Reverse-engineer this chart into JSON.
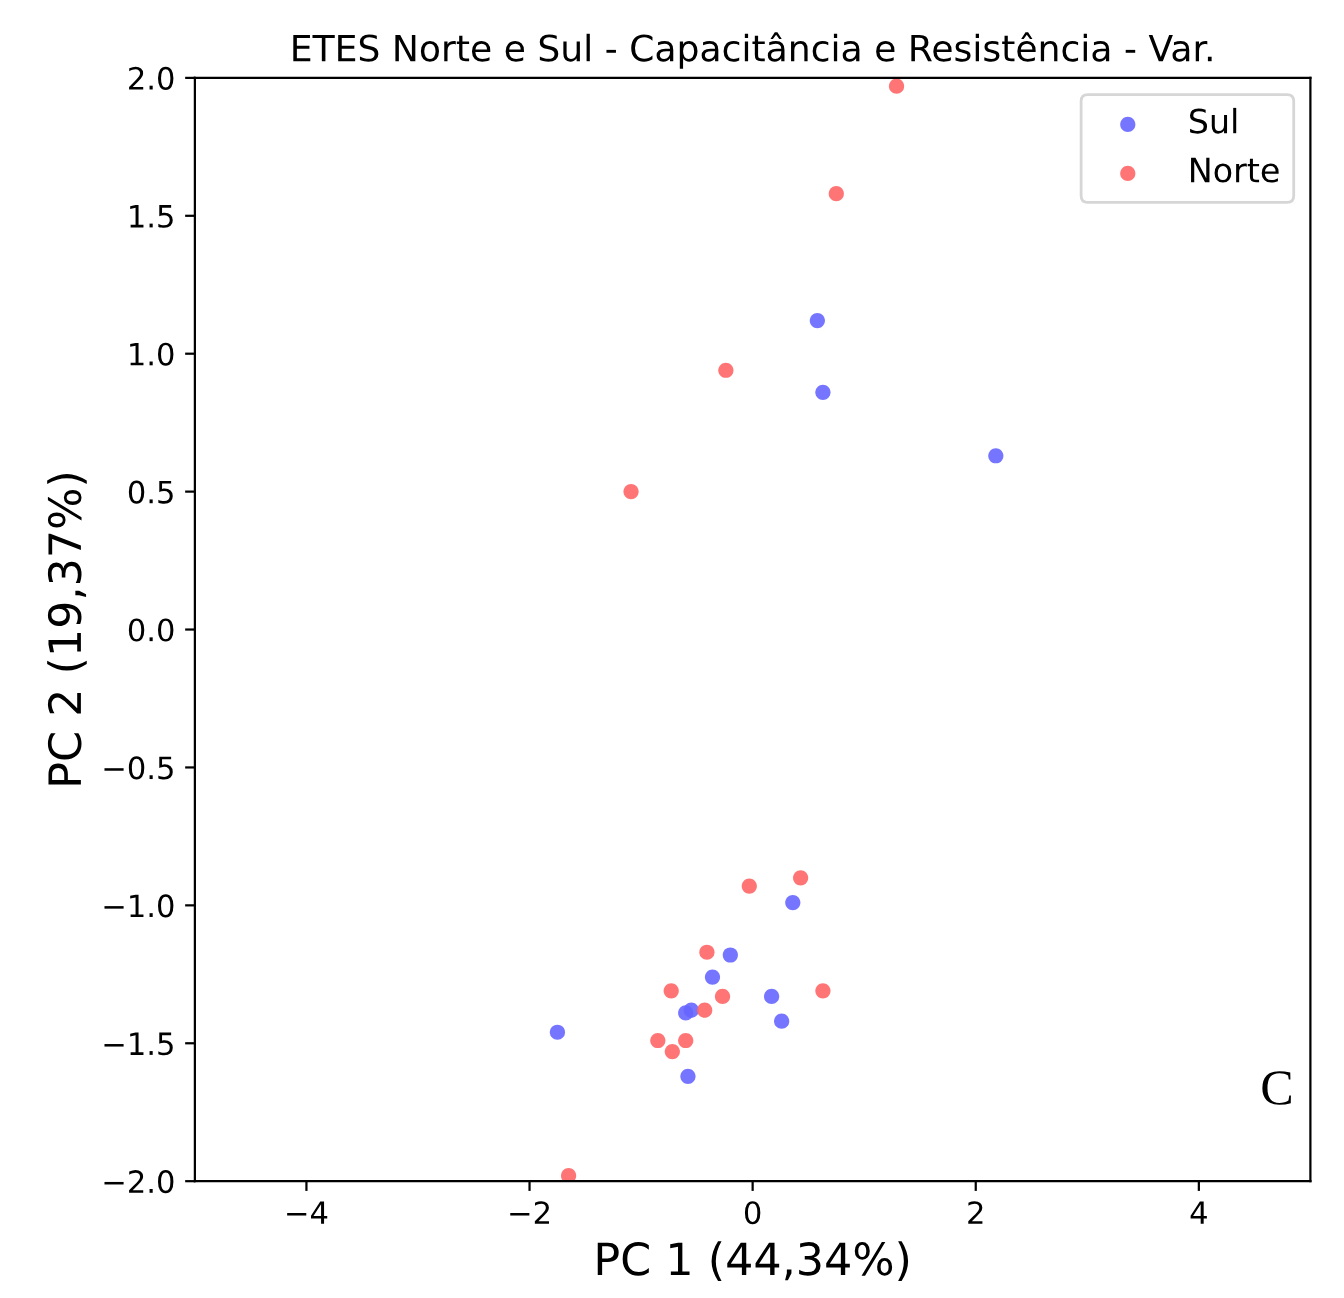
{
  "chart_data": {
    "type": "scatter",
    "title": "ETES Norte e Sul - Capacitância e Resistência - Var.",
    "xlabel": "PC 1 (44,34%)",
    "ylabel": "PC 2 (19,37%)",
    "xlim": [
      -5,
      5
    ],
    "ylim": [
      -2,
      2
    ],
    "xticks": [
      -4,
      -2,
      0,
      2,
      4
    ],
    "yticks": [
      {
        "value": -2,
        "label": "−2.0"
      },
      -1.5,
      {
        "value": -1,
        "label": "−1.0"
      },
      -0.5,
      {
        "value": 0,
        "label": "0.0"
      },
      0.5,
      {
        "value": 1,
        "label": "1.0"
      },
      1.5,
      {
        "value": 2,
        "label": "2.0"
      }
    ],
    "grid": false,
    "legend": "top right",
    "marker": "circle",
    "annotations": [
      "C"
    ],
    "series": [
      {
        "name": "Sul",
        "color": "#6666ff",
        "x": [
          0.58,
          0.63,
          2.18,
          0.36,
          -0.2,
          -0.36,
          0.17,
          0.26,
          -0.6,
          -0.55,
          -0.58,
          -1.75
        ],
        "values": [
          1.12,
          0.86,
          0.63,
          -0.99,
          -1.18,
          -1.26,
          -1.33,
          -1.42,
          -1.39,
          -1.38,
          -1.62,
          -1.46
        ]
      },
      {
        "name": "Norte",
        "color": "#ff6666",
        "x": [
          1.29,
          0.75,
          -0.24,
          -1.09,
          -0.03,
          0.43,
          -0.41,
          0.63,
          -0.73,
          -0.27,
          -0.43,
          -0.85,
          -0.72,
          -0.6,
          -1.65
        ],
        "values": [
          1.97,
          1.58,
          0.94,
          0.5,
          -0.93,
          -0.9,
          -1.17,
          -1.31,
          -1.31,
          -1.33,
          -1.38,
          -1.49,
          -1.53,
          -1.49,
          -1.98
        ]
      }
    ]
  }
}
